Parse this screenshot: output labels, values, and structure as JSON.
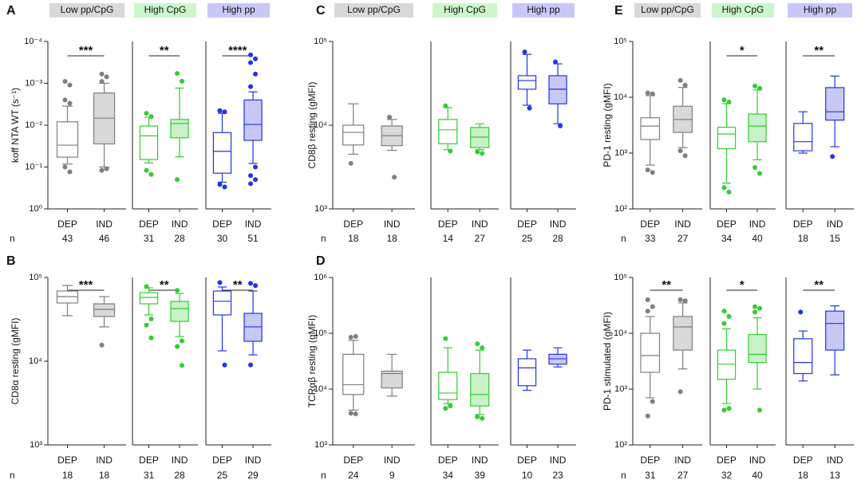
{
  "chart_data": [
    {
      "type": "box",
      "panel": "A",
      "ylabel": "koff NTA WT (s⁻¹)",
      "log": true,
      "ylim": [
        1,
        0.0001
      ],
      "yticks": [
        {
          "value": 0.0001,
          "label": "10⁻⁴"
        },
        {
          "value": 0.001,
          "label": "10⁻³"
        },
        {
          "value": 0.01,
          "label": "10⁻²"
        },
        {
          "value": 0.1,
          "label": "10⁻¹"
        },
        {
          "value": 1,
          "label": "10⁰"
        }
      ],
      "n_label": "n",
      "groups": [
        {
          "name": "Low pp/CpG",
          "header_color": "#d9d9d9",
          "color": "#7f7f7f",
          "categories": [
            "DEP",
            "IND"
          ],
          "n": [
            43,
            46
          ],
          "significance": "***",
          "boxes": [
            {
              "whislo": 0.0035,
              "q1": 0.0083,
              "med": 0.03,
              "q3": 0.058,
              "whishi": 0.085,
              "fliers": [
                0.0009,
                0.0011,
                0.0025,
                0.003,
                0.1,
                0.13
              ],
              "fill": "#ffffff"
            },
            {
              "whislo": 0.001,
              "q1": 0.0017,
              "med": 0.0068,
              "q3": 0.028,
              "whishi": 0.1,
              "fliers": [
                0.0006,
                0.0007,
                0.0009,
                0.11,
                0.12
              ],
              "fill": "#d9d9d9"
            }
          ]
        },
        {
          "name": "High CpG",
          "header_color": "#ccf7cc",
          "color": "#33cc33",
          "categories": [
            "DEP",
            "IND"
          ],
          "n": [
            31,
            28
          ],
          "significance": "**",
          "boxes": [
            {
              "whislo": 0.0065,
              "q1": 0.0105,
              "med": 0.018,
              "q3": 0.066,
              "whishi": 0.08,
              "fliers": [
                0.0052,
                0.0062,
                0.12,
                0.15
              ],
              "fill": "#ffffff"
            },
            {
              "whislo": 0.0013,
              "q1": 0.0073,
              "med": 0.0091,
              "q3": 0.02,
              "whishi": 0.057,
              "fliers": [
                0.00058,
                0.00089,
                0.2
              ],
              "fill": "#c9f2c9"
            }
          ]
        },
        {
          "name": "High pp",
          "header_color": "#c8c8f8",
          "color": "#2233e8",
          "categories": [
            "DEP",
            "IND"
          ],
          "n": [
            30,
            51
          ],
          "significance": "****",
          "boxes": [
            {
              "whislo": 0.0052,
              "q1": 0.015,
              "med": 0.042,
              "q3": 0.14,
              "whishi": 0.23,
              "fliers": [
                0.0045,
                0.0048,
                0.26,
                0.3
              ],
              "fill": "#ffffff"
            },
            {
              "whislo": 0.0016,
              "q1": 0.0025,
              "med": 0.0096,
              "q3": 0.023,
              "whishi": 0.082,
              "fliers": [
                0.00021,
                0.00026,
                0.00032,
                0.0006,
                0.0012,
                0.1,
                0.16,
                0.2,
                0.25
              ],
              "fill": "#c8c8f6"
            }
          ]
        }
      ]
    },
    {
      "type": "box",
      "panel": "B",
      "ylabel": "CD8α resting (gMFI)",
      "log": true,
      "ylim": [
        1000,
        100000
      ],
      "yticks": [
        {
          "value": 1000,
          "label": "10³"
        },
        {
          "value": 10000,
          "label": "10⁴"
        },
        {
          "value": 100000,
          "label": "10⁵"
        }
      ],
      "n_label": "n",
      "groups": [
        {
          "color": "#7f7f7f",
          "categories": [
            "DEP",
            "IND"
          ],
          "n": [
            18,
            18
          ],
          "significance": "***",
          "boxes": [
            {
              "whislo": 35000,
              "q1": 49600,
              "med": 59100,
              "q3": 68900,
              "whishi": 80300,
              "fliers": [],
              "fill": "#ffffff"
            },
            {
              "whislo": 25700,
              "q1": 34200,
              "med": 41600,
              "q3": 48500,
              "whishi": 59100,
              "fliers": [
                15600
              ],
              "fill": "#d9d9d9"
            }
          ]
        },
        {
          "color": "#33cc33",
          "categories": [
            "DEP",
            "IND"
          ],
          "n": [
            31,
            28
          ],
          "significance": "**",
          "boxes": [
            {
              "whislo": 35700,
              "q1": 48500,
              "med": 57800,
              "q3": 65900,
              "whishi": 75200,
              "fliers": [
                78000,
                32000,
                27000,
                19000
              ],
              "fill": "#ffffff"
            },
            {
              "whislo": 19700,
              "q1": 29900,
              "med": 42500,
              "q3": 51800,
              "whishi": 64500,
              "fliers": [
                70000,
                17500,
                15000,
                8900
              ],
              "fill": "#c9f2c9"
            }
          ]
        },
        {
          "color": "#2233e8",
          "categories": [
            "DEP",
            "IND"
          ],
          "n": [
            25,
            29
          ],
          "significance": "**",
          "boxes": [
            {
              "whislo": 13300,
              "q1": 35700,
              "med": 52000,
              "q3": 68900,
              "whishi": 76900,
              "fliers": [
                87000,
                9000
              ],
              "fill": "#ffffff"
            },
            {
              "whislo": 11900,
              "q1": 17300,
              "med": 25700,
              "q3": 37300,
              "whishi": 68900,
              "fliers": [
                85000,
                80000,
                9000
              ],
              "fill": "#c8c8f6"
            }
          ]
        }
      ]
    },
    {
      "type": "box",
      "panel": "C",
      "ylabel": "CD8β resting (gMFI)",
      "log": true,
      "ylim": [
        1000,
        100000
      ],
      "yticks": [
        {
          "value": 1000,
          "label": "10³"
        },
        {
          "value": 10000,
          "label": "10⁴"
        },
        {
          "value": 100000,
          "label": "10⁵"
        }
      ],
      "n_label": "n",
      "groups": [
        {
          "name": "Low pp/CpG",
          "header_color": "#d9d9d9",
          "color": "#7f7f7f",
          "categories": [
            "DEP",
            "IND"
          ],
          "n": [
            18,
            18
          ],
          "boxes": [
            {
              "whislo": 4500,
              "q1": 5800,
              "med": 8200,
              "q3": 10000,
              "whishi": 18000,
              "fliers": [
                3500
              ],
              "fill": "#ffffff"
            },
            {
              "whislo": 5000,
              "q1": 5700,
              "med": 7500,
              "q3": 9800,
              "whishi": 11700,
              "fliers": [
                12500,
                2400
              ],
              "fill": "#d9d9d9"
            }
          ]
        },
        {
          "name": "High CpG",
          "header_color": "#ccf7cc",
          "color": "#33cc33",
          "categories": [
            "DEP",
            "IND"
          ],
          "n": [
            14,
            27
          ],
          "boxes": [
            {
              "whislo": 5100,
              "q1": 6000,
              "med": 8800,
              "q3": 11700,
              "whishi": 16200,
              "fliers": [
                17000,
                4900
              ],
              "fill": "#ffffff"
            },
            {
              "whislo": 5100,
              "q1": 5400,
              "med": 7200,
              "q3": 9400,
              "whishi": 10400,
              "fliers": [
                4800,
                4600
              ],
              "fill": "#c9f2c9"
            }
          ]
        },
        {
          "name": "High pp",
          "header_color": "#c8c8f8",
          "color": "#2233e8",
          "categories": [
            "DEP",
            "IND"
          ],
          "n": [
            25,
            28
          ],
          "boxes": [
            {
              "whislo": 17300,
              "q1": 26900,
              "med": 34100,
              "q3": 39000,
              "whishi": 70000,
              "fliers": [
                75000,
                16000
              ],
              "fill": "#ffffff"
            },
            {
              "whislo": 10400,
              "q1": 18000,
              "med": 26900,
              "q3": 39000,
              "whishi": 54000,
              "fliers": [
                57000,
                9800
              ],
              "fill": "#c8c8f6"
            }
          ]
        }
      ]
    },
    {
      "type": "box",
      "panel": "D",
      "ylabel": "TCRαβ resting (gMFI)",
      "log": true,
      "ylim": [
        1000,
        1000000
      ],
      "yticks": [
        {
          "value": 1000,
          "label": "10³"
        },
        {
          "value": 10000,
          "label": "10⁴"
        },
        {
          "value": 100000,
          "label": "10⁵"
        },
        {
          "value": 1000000,
          "label": "10⁶"
        }
      ],
      "n_label": "n",
      "groups": [
        {
          "color": "#7f7f7f",
          "categories": [
            "DEP",
            "IND"
          ],
          "n": [
            24,
            9
          ],
          "boxes": [
            {
              "whislo": 4200,
              "q1": 8000,
              "med": 12000,
              "q3": 42000,
              "whishi": 75000,
              "fliers": [
                85000,
                88000,
                3700,
                3600
              ],
              "fill": "#ffffff"
            },
            {
              "whislo": 7500,
              "q1": 10500,
              "med": 19000,
              "q3": 21000,
              "whishi": 42000,
              "fliers": [],
              "fill": "#d9d9d9"
            }
          ]
        },
        {
          "color": "#33cc33",
          "categories": [
            "DEP",
            "IND"
          ],
          "n": [
            34,
            39
          ],
          "boxes": [
            {
              "whislo": 5500,
              "q1": 6500,
              "med": 8500,
              "q3": 20000,
              "whishi": 55000,
              "fliers": [
                80000,
                5000,
                4500
              ],
              "fill": "#ffffff"
            },
            {
              "whislo": 3500,
              "q1": 5000,
              "med": 8000,
              "q3": 19000,
              "whishi": 50000,
              "fliers": [
                65000,
                55000,
                3200,
                3000
              ],
              "fill": "#c9f2c9"
            }
          ]
        },
        {
          "color": "#2233e8",
          "categories": [
            "DEP",
            "IND"
          ],
          "n": [
            10,
            23
          ],
          "boxes": [
            {
              "whislo": 9500,
              "q1": 11500,
              "med": 24000,
              "q3": 35000,
              "whishi": 50000,
              "fliers": [],
              "fill": "#ffffff"
            },
            {
              "whislo": 25000,
              "q1": 28000,
              "med": 35000,
              "q3": 42000,
              "whishi": 55000,
              "fliers": [],
              "fill": "#c8c8f6"
            }
          ]
        }
      ]
    },
    {
      "type": "box",
      "panel": "E",
      "ylabel": "PD-1 resting (gMFI)",
      "log": true,
      "ylim": [
        100,
        100000
      ],
      "yticks": [
        {
          "value": 100,
          "label": "10²"
        },
        {
          "value": 1000,
          "label": "10³"
        },
        {
          "value": 10000,
          "label": "10⁴"
        },
        {
          "value": 100000,
          "label": "10⁵"
        }
      ],
      "n_label": "n",
      "groups": [
        {
          "name": "Low pp/CpG",
          "header_color": "#d9d9d9",
          "color": "#7f7f7f",
          "categories": [
            "DEP",
            "IND"
          ],
          "n": [
            33,
            27
          ],
          "boxes": [
            {
              "whislo": 610,
              "q1": 1750,
              "med": 3050,
              "q3": 4300,
              "whishi": 10700,
              "fliers": [
                12000,
                11500,
                500,
                450
              ],
              "fill": "#ffffff"
            },
            {
              "whislo": 1250,
              "q1": 2350,
              "med": 4000,
              "q3": 6900,
              "whishi": 15000,
              "fliers": [
                20000,
                16500,
                1100,
                900
              ],
              "fill": "#d9d9d9"
            }
          ]
        },
        {
          "name": "High CpG",
          "header_color": "#ccf7cc",
          "color": "#33cc33",
          "categories": [
            "DEP",
            "IND"
          ],
          "n": [
            34,
            40
          ],
          "significance": "*",
          "boxes": [
            {
              "whislo": 290,
              "q1": 1200,
              "med": 2200,
              "q3": 2900,
              "whishi": 7700,
              "fliers": [
                9000,
                8200,
                240,
                200
              ],
              "fill": "#ffffff"
            },
            {
              "whislo": 760,
              "q1": 1600,
              "med": 3050,
              "q3": 5000,
              "whishi": 13500,
              "fliers": [
                16000,
                14500,
                550,
                430
              ],
              "fill": "#c9f2c9"
            }
          ]
        },
        {
          "name": "High pp",
          "header_color": "#c8c8f8",
          "color": "#2233e8",
          "categories": [
            "DEP",
            "IND"
          ],
          "n": [
            18,
            15
          ],
          "significance": "**",
          "boxes": [
            {
              "whislo": 1000,
              "q1": 1100,
              "med": 1600,
              "q3": 3400,
              "whishi": 5500,
              "fliers": [],
              "fill": "#ffffff"
            },
            {
              "whislo": 1300,
              "q1": 3900,
              "med": 5500,
              "q3": 14900,
              "whishi": 24000,
              "fliers": [
                870
              ],
              "fill": "#c8c8f6"
            }
          ]
        }
      ]
    },
    {
      "type": "box",
      "ylabel": "PD-1 stimulated (gMFI)",
      "log": true,
      "ylim": [
        100,
        100000
      ],
      "yticks": [
        {
          "value": 100,
          "label": "10²"
        },
        {
          "value": 1000,
          "label": "10³"
        },
        {
          "value": 10000,
          "label": "10⁴"
        },
        {
          "value": 100000,
          "label": "10⁵"
        }
      ],
      "n_label": "n",
      "groups": [
        {
          "color": "#7f7f7f",
          "categories": [
            "DEP",
            "IND"
          ],
          "n": [
            31,
            27
          ],
          "significance": "**",
          "boxes": [
            {
              "whislo": 700,
              "q1": 2000,
              "med": 4000,
              "q3": 10000,
              "whishi": 20000,
              "fliers": [
                40000,
                30000,
                25000,
                600,
                330
              ],
              "fill": "#ffffff"
            },
            {
              "whislo": 2300,
              "q1": 5000,
              "med": 13000,
              "q3": 20000,
              "whishi": 35000,
              "fliers": [
                40000,
                38000,
                900
              ],
              "fill": "#d9d9d9"
            }
          ]
        },
        {
          "color": "#33cc33",
          "categories": [
            "DEP",
            "IND"
          ],
          "n": [
            32,
            40
          ],
          "significance": "*",
          "boxes": [
            {
              "whislo": 550,
              "q1": 1500,
              "med": 2800,
              "q3": 5000,
              "whishi": 12000,
              "fliers": [
                25000,
                20000,
                15000,
                450,
                420
              ],
              "fill": "#ffffff"
            },
            {
              "whislo": 1000,
              "q1": 3000,
              "med": 4200,
              "q3": 9500,
              "whishi": 19000,
              "fliers": [
                30000,
                28000,
                24000,
                420
              ],
              "fill": "#c9f2c9"
            }
          ]
        },
        {
          "color": "#2233e8",
          "categories": [
            "DEP",
            "IND"
          ],
          "n": [
            18,
            13
          ],
          "significance": "**",
          "boxes": [
            {
              "whislo": 1400,
              "q1": 1900,
              "med": 3000,
              "q3": 8000,
              "whishi": 11000,
              "fliers": [
                24000
              ],
              "fill": "#ffffff"
            },
            {
              "whislo": 1800,
              "q1": 5000,
              "med": 15000,
              "q3": 25000,
              "whishi": 31000,
              "fliers": [],
              "fill": "#c8c8f6"
            }
          ]
        }
      ]
    }
  ]
}
